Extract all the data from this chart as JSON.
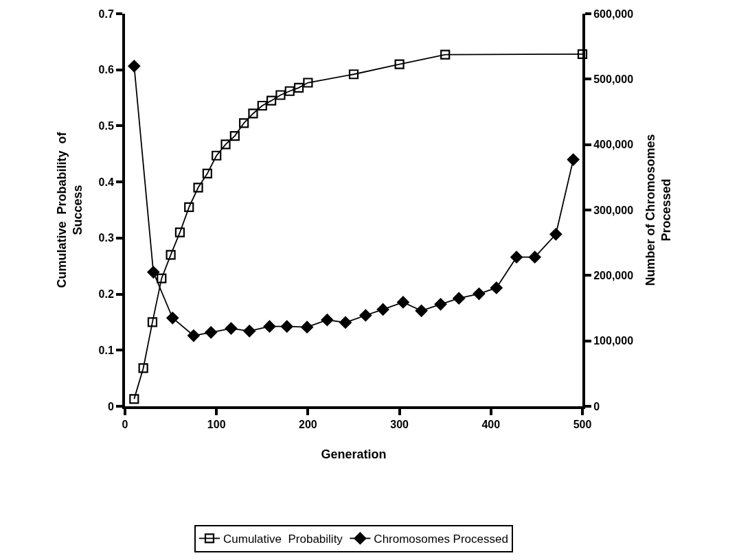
{
  "chart_data": {
    "type": "line",
    "xlabel": "Generation",
    "ylabel": "Cumulative  Probability  of\nSuccess",
    "y2label": "Number of Chromosomes\nProcessed",
    "xlim": [
      0,
      500
    ],
    "xticks": [
      0,
      100,
      200,
      300,
      400,
      500
    ],
    "ylim": [
      0,
      0.7
    ],
    "yticks": [
      0,
      0.1,
      0.2,
      0.3,
      0.4,
      0.5,
      0.6,
      0.7
    ],
    "y2lim": [
      0,
      600000
    ],
    "y2ticks": [
      {
        "value": 0,
        "label": "0"
      },
      {
        "value": 100000,
        "label": "100,000"
      },
      {
        "value": 200000,
        "label": "200,000"
      },
      {
        "value": 300000,
        "label": "300,000"
      },
      {
        "value": 400000,
        "label": "400,000"
      },
      {
        "value": 500000,
        "label": "500,000"
      },
      {
        "value": 600000,
        "label": "600,000"
      }
    ],
    "grid": false,
    "legend": "bottom",
    "series": [
      {
        "name": "Cumulative  Probability",
        "color": "#000000",
        "marker": "square",
        "x": [
          10,
          20,
          30,
          40,
          50,
          60,
          70,
          80,
          90,
          100,
          110,
          120,
          130,
          140,
          150,
          160,
          170,
          180,
          190,
          200,
          250,
          300,
          350,
          500
        ],
        "values": [
          0.013,
          0.068,
          0.15,
          0.228,
          0.27,
          0.31,
          0.355,
          0.39,
          0.415,
          0.447,
          0.467,
          0.482,
          0.505,
          0.522,
          0.536,
          0.545,
          0.555,
          0.562,
          0.568,
          0.577,
          0.592,
          0.61,
          0.627,
          0.628
        ]
      },
      {
        "name": "Chromosomes Processed",
        "color": "#000000",
        "marker": "diamond",
        "axis": "y2",
        "x": [
          10,
          31,
          52,
          75,
          94,
          116,
          136,
          158,
          177,
          199,
          221,
          241,
          263,
          282,
          304,
          324,
          345,
          365,
          387,
          406,
          428,
          448,
          471,
          490
        ],
        "values": [
          520000,
          205000,
          135000,
          108000,
          113000,
          119000,
          115000,
          122000,
          122000,
          121000,
          132000,
          128000,
          139000,
          148000,
          159000,
          146000,
          156000,
          165000,
          172000,
          181000,
          228000,
          228000,
          263000,
          377000
        ]
      }
    ]
  }
}
